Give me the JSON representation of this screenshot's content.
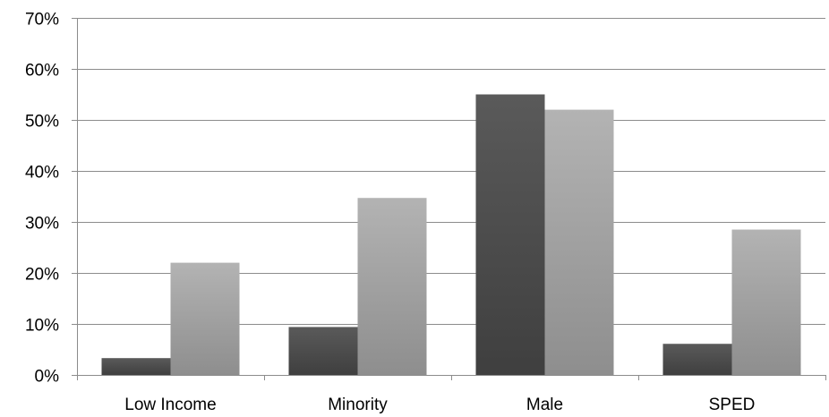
{
  "chart_data": {
    "type": "bar",
    "categories": [
      "Low Income",
      "Minority",
      "Male",
      "SPED"
    ],
    "series": [
      {
        "values": [
          3.3,
          9.4,
          55.0,
          6.1
        ],
        "color": "#4a4a4a"
      },
      {
        "values": [
          22.0,
          34.7,
          52.0,
          28.5
        ],
        "color": "#a9a9a9"
      }
    ],
    "ylim": [
      0,
      70
    ],
    "ytick_values": [
      0,
      10,
      20,
      30,
      40,
      50,
      60,
      70
    ],
    "ytick_labels": [
      "0%",
      "10%",
      "20%",
      "30%",
      "40%",
      "50%",
      "60%",
      "70%"
    ],
    "grid": true,
    "legend": "none"
  }
}
